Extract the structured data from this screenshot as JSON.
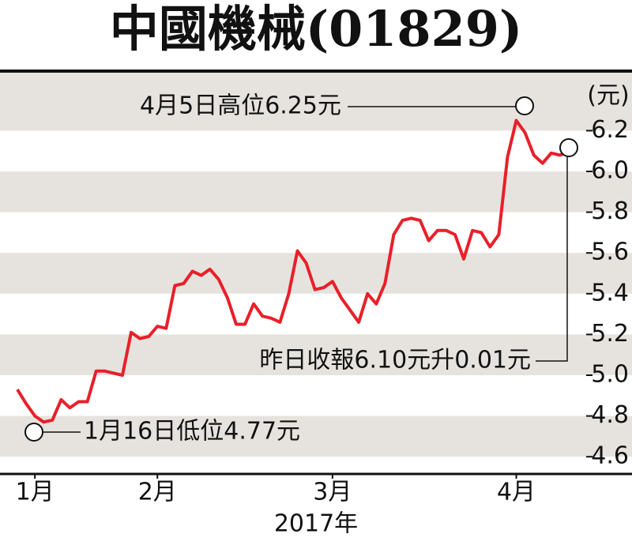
{
  "chart_data": {
    "type": "line",
    "title": "中國機械(01829)",
    "x_label": "2017年",
    "y_label": "(元)",
    "color": "#e8202a",
    "values": [
      4.93,
      4.86,
      4.8,
      4.77,
      4.78,
      4.88,
      4.84,
      4.87,
      4.87,
      5.02,
      5.02,
      5.01,
      5.0,
      5.21,
      5.18,
      5.19,
      5.24,
      5.23,
      5.44,
      5.45,
      5.51,
      5.49,
      5.52,
      5.47,
      5.38,
      5.25,
      5.25,
      5.35,
      5.29,
      5.28,
      5.26,
      5.4,
      5.61,
      5.55,
      5.42,
      5.43,
      5.46,
      5.38,
      5.32,
      5.26,
      5.4,
      5.35,
      5.45,
      5.69,
      5.76,
      5.77,
      5.76,
      5.66,
      5.71,
      5.71,
      5.69,
      5.57,
      5.71,
      5.7,
      5.63,
      5.69,
      6.07,
      6.25,
      6.19,
      6.08,
      6.04,
      6.09,
      6.08,
      6.1
    ],
    "xlim": [
      0,
      63
    ],
    "xticks": [
      {
        "value": 2,
        "label": "1月"
      },
      {
        "value": 16,
        "label": "2月"
      },
      {
        "value": 36,
        "label": "3月"
      },
      {
        "value": 57,
        "label": "4月"
      }
    ],
    "ylim": [
      4.5,
      6.5
    ],
    "yticks": [
      4.6,
      4.8,
      {
        "value": 5.0,
        "label": "5.0"
      },
      5.2,
      5.4,
      5.6,
      5.8,
      {
        "value": 6.0,
        "label": "6.0"
      },
      6.2
    ],
    "annotations": [
      "4月5日高位6.25元",
      "1月16日低位4.77元",
      "昨日收報6.10元升0.01元"
    ]
  }
}
